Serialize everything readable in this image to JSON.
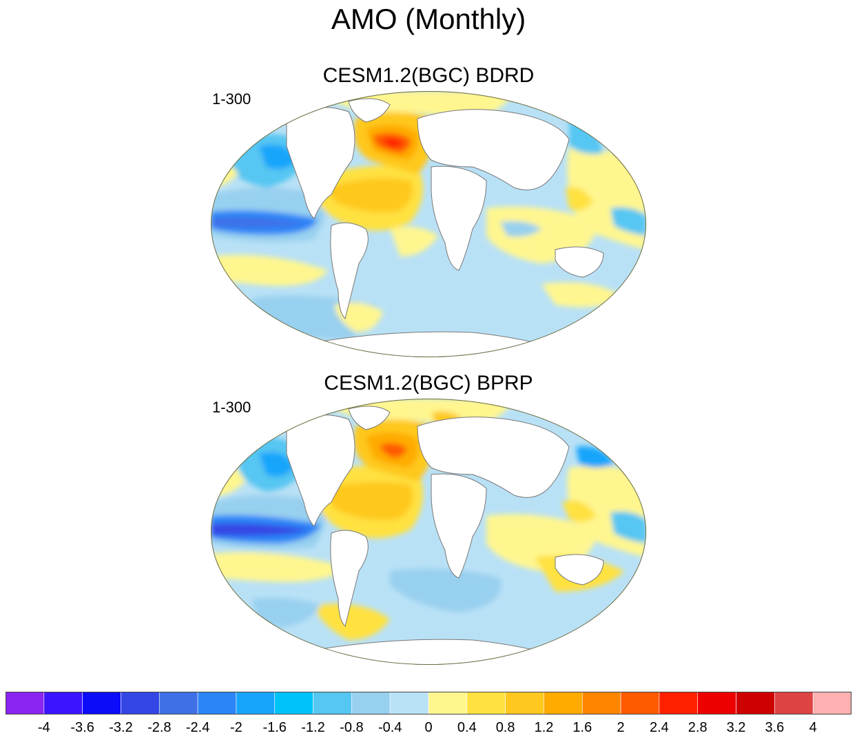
{
  "figure": {
    "title": "AMO (Monthly)"
  },
  "panels": [
    {
      "title": "CESM1.2(BGC) BDRD",
      "period": "1-300"
    },
    {
      "title": "CESM1.2(BGC) BPRP",
      "period": "1-300"
    }
  ],
  "colorbar": {
    "levels": [
      "-4",
      "-3.6",
      "-3.2",
      "-2.8",
      "-2.4",
      "-2",
      "-1.6",
      "-1.2",
      "-0.8",
      "-0.4",
      "0",
      "0.4",
      "0.8",
      "1.2",
      "1.6",
      "2",
      "2.4",
      "2.8",
      "3.2",
      "3.6",
      "4"
    ],
    "colors": [
      "#8a24f0",
      "#3d14ff",
      "#0c0cfb",
      "#3446e4",
      "#3f70e6",
      "#2b85f7",
      "#16a5fb",
      "#00c2fb",
      "#56c6f2",
      "#98d0ef",
      "#b9e1f6",
      "#fff68f",
      "#ffe140",
      "#ffc81e",
      "#ffab00",
      "#ff8500",
      "#ff5a00",
      "#ff2000",
      "#ee0000",
      "#cf0000",
      "#dd4343",
      "#ffb0b0"
    ]
  },
  "palette": {
    "land": "#ffffff",
    "coast": "#777777",
    "outline": "#6b6b40"
  }
}
